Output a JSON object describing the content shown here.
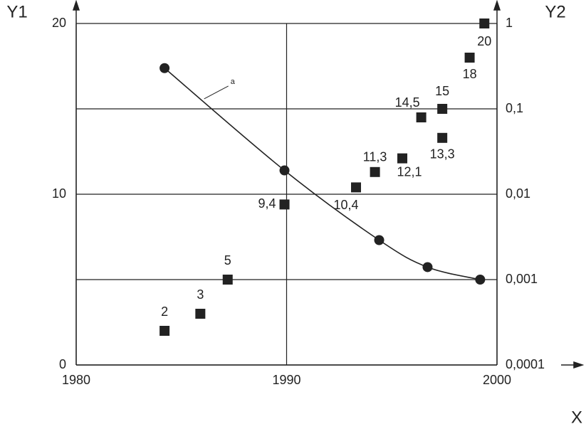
{
  "chart_data": {
    "type": "scatter",
    "xlabel": "X",
    "ylabel": "Y1",
    "y2label": "Y2",
    "annotation": "a",
    "xlim": [
      1980,
      2000
    ],
    "xticks": [
      1980,
      1990,
      2000
    ],
    "ylim": [
      0,
      20
    ],
    "yticks": [
      0,
      10,
      20
    ],
    "y2lim": [
      0.0001,
      1
    ],
    "y2scale": "log",
    "y2ticks": [
      {
        "value": 0.0001,
        "label": "0,0001"
      },
      {
        "value": 0.001,
        "label": "0,001"
      },
      {
        "value": 0.01,
        "label": "0,01"
      },
      {
        "value": 0.1,
        "label": "0,1"
      },
      1
    ],
    "grid": true,
    "series": [
      {
        "marker": "square",
        "color": "#222222",
        "x": [
          1984.2,
          1985.9,
          1987.2,
          1989.9,
          1993.3,
          1994.2,
          1995.5,
          1996.4,
          1997.4,
          1997.4,
          1998.7,
          1999.4
        ],
        "values": [
          2,
          3,
          5,
          9.4,
          10.4,
          11.3,
          12.1,
          14.5,
          13.3,
          15,
          18,
          20
        ],
        "value_labels": [
          "2",
          "3",
          "5",
          "9,4",
          "10,4",
          "11,3",
          "12,1",
          "14,5",
          "13,3",
          "15",
          "18",
          "20"
        ]
      },
      {
        "name": "a",
        "marker": "circle",
        "color": "#222222",
        "axis": "y2",
        "line": true,
        "x": [
          1984.2,
          1989.9,
          1994.4,
          1996.7,
          1999.2
        ],
        "values": [
          0.3,
          0.019,
          0.0029,
          0.0014,
          0.001
        ]
      }
    ]
  }
}
